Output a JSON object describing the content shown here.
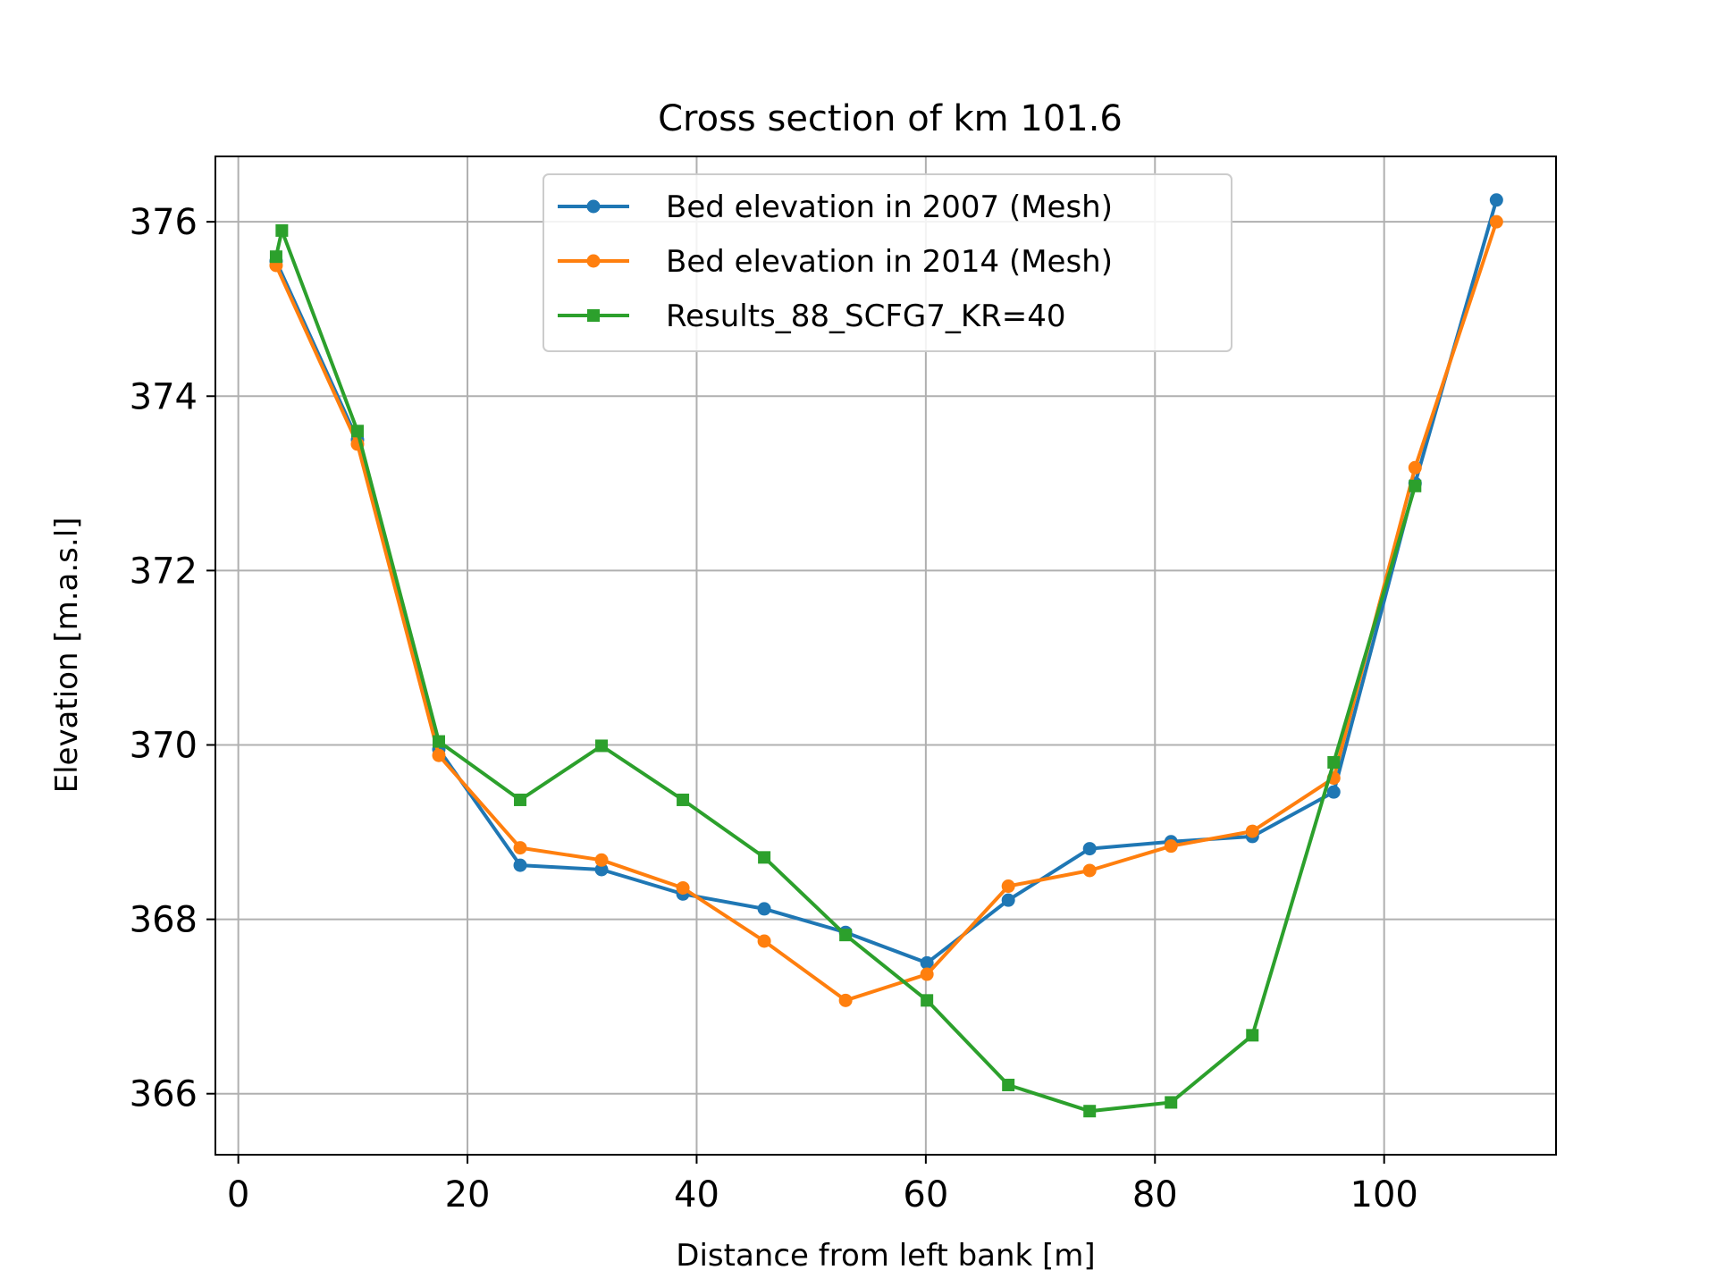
{
  "chart_data": {
    "type": "line",
    "title": "Cross section of km 101.6",
    "xlabel": "Distance from left bank [m]",
    "ylabel": "Elevation [m.a.s.l]",
    "xlim": [
      -2,
      115
    ],
    "ylim": [
      365.3,
      376.75
    ],
    "xticks": [
      0,
      20,
      40,
      60,
      80,
      100
    ],
    "yticks": [
      366,
      368,
      370,
      372,
      374,
      376
    ],
    "grid": true,
    "legend_position": "upper center",
    "series": [
      {
        "name": "Bed elevation in 2007 (Mesh)",
        "color": "#1f77b4",
        "marker": "circle",
        "x": [
          3.3,
          10.4,
          17.5,
          24.6,
          31.7,
          38.8,
          45.9,
          53.0,
          60.1,
          67.2,
          74.3,
          81.4,
          88.5,
          95.6,
          102.7,
          109.8
        ],
        "y": [
          375.55,
          373.5,
          369.95,
          368.62,
          368.57,
          368.29,
          368.12,
          367.85,
          367.5,
          368.22,
          368.81,
          368.89,
          368.95,
          369.46,
          373.0,
          376.25
        ]
      },
      {
        "name": "Bed elevation in 2014 (Mesh)",
        "color": "#ff7f0e",
        "marker": "circle",
        "x": [
          3.3,
          10.4,
          17.5,
          24.6,
          31.7,
          38.8,
          45.9,
          53.0,
          60.1,
          67.2,
          74.3,
          81.4,
          88.5,
          95.6,
          102.7,
          109.8
        ],
        "y": [
          375.5,
          373.45,
          369.88,
          368.82,
          368.68,
          368.36,
          367.75,
          367.07,
          367.37,
          368.38,
          368.56,
          368.84,
          369.01,
          369.62,
          373.18,
          376.0
        ]
      },
      {
        "name": "Results_88_SCFG7_KR=40",
        "color": "#2ca02c",
        "marker": "square",
        "x": [
          3.3,
          3.8,
          10.4,
          17.5,
          24.6,
          31.7,
          38.8,
          45.9,
          53.0,
          60.1,
          67.2,
          74.3,
          81.4,
          88.5,
          95.6,
          102.7
        ],
        "y": [
          375.6,
          375.9,
          373.6,
          370.04,
          369.37,
          369.99,
          369.37,
          368.71,
          367.82,
          367.07,
          366.1,
          365.8,
          365.9,
          366.67,
          369.8,
          372.97
        ]
      }
    ]
  }
}
